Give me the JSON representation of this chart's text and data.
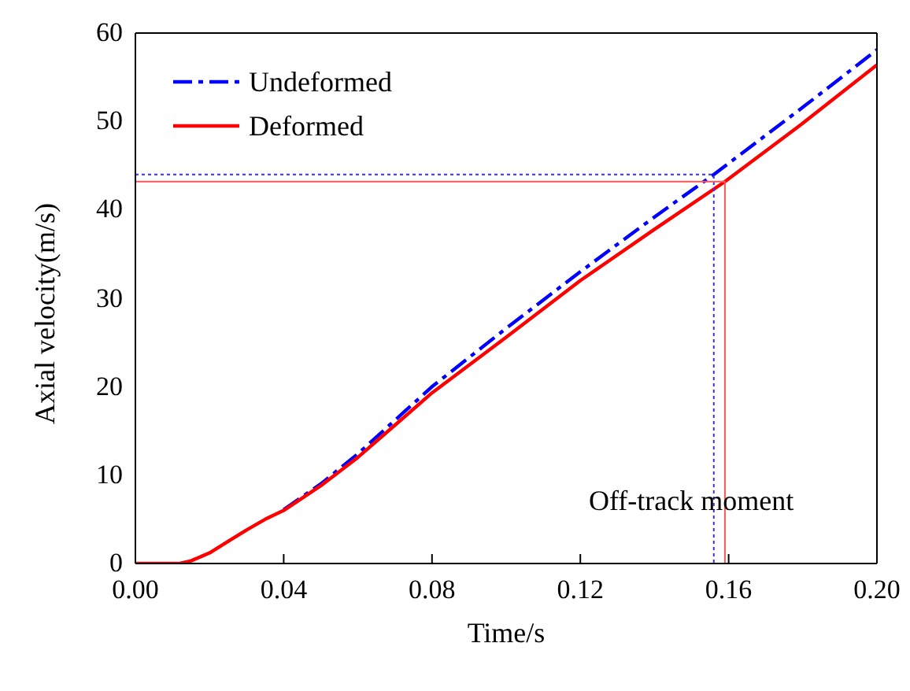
{
  "chart_data": {
    "type": "line",
    "xlabel": "Time/s",
    "ylabel": "Axial velocity(m/s)",
    "xlim": [
      0,
      0.2
    ],
    "xticks": [
      {
        "value": 0,
        "label": "0.00"
      },
      {
        "value": 0.04,
        "label": "0.04"
      },
      {
        "value": 0.08,
        "label": "0.08"
      },
      {
        "value": 0.12,
        "label": "0.12"
      },
      {
        "value": 0.16,
        "label": "0.16"
      },
      {
        "value": 0.2,
        "label": "0.20"
      }
    ],
    "ylim": [
      0,
      60
    ],
    "yticks": [
      0,
      10,
      20,
      30,
      40,
      50,
      60
    ],
    "grid": false,
    "legend": "top left",
    "marker": "none",
    "series": [
      {
        "name": "Undeformed",
        "color": "#0000ff",
        "line_style": "dashdot",
        "x": [
          0.04,
          0.05,
          0.06,
          0.08,
          0.1,
          0.12,
          0.14,
          0.156,
          0.18,
          0.2
        ],
        "values": [
          6.1,
          9,
          12.4,
          20,
          26.6,
          33,
          39.2,
          44,
          51.6,
          58.1
        ]
      },
      {
        "name": "Deformed",
        "color": "#ff0000",
        "line_style": "solid",
        "x": [
          0,
          0.012,
          0.015,
          0.02,
          0.025,
          0.03,
          0.035,
          0.04,
          0.05,
          0.06,
          0.08,
          0.1,
          0.12,
          0.14,
          0.159,
          0.18,
          0.2
        ],
        "values": [
          0,
          0,
          0.3,
          1.2,
          2.5,
          3.8,
          5,
          6,
          8.8,
          12,
          19.3,
          25.6,
          32,
          37.8,
          43.2,
          49.8,
          56.4
        ]
      },
      {
        "color": "#3333ff",
        "line_style": "dotted",
        "x": [
          0,
          0.156,
          0.156
        ],
        "values": [
          44,
          44,
          0
        ]
      },
      {
        "color": "#ff5555",
        "line_style": "solid",
        "x": [
          0,
          0.159,
          0.159
        ],
        "values": [
          43.2,
          43.2,
          0
        ]
      }
    ],
    "annotations": [
      "Off-track moment"
    ]
  }
}
